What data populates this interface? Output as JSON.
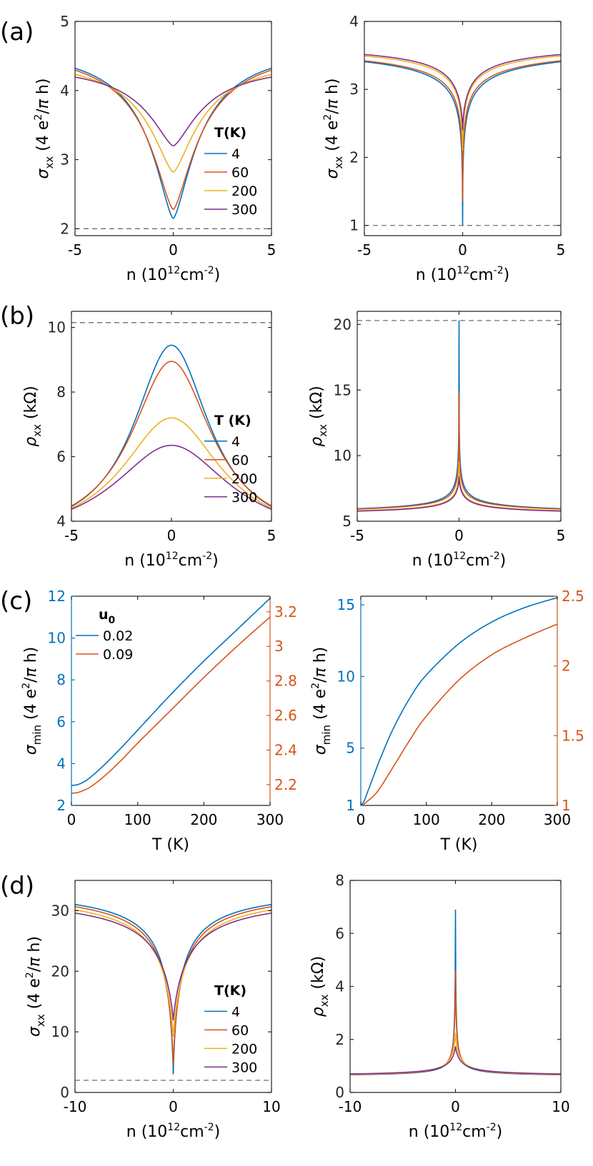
{
  "colors": {
    "c4": "#0072BD",
    "c60": "#D95319",
    "c200": "#EDB120",
    "c300": "#7E2F8E",
    "axis": "#262626",
    "dash": "#6e6e6e"
  },
  "panel_labels": [
    "(a)",
    "(b)",
    "(c)",
    "(d)"
  ],
  "chart_data": [
    {
      "id": "a-left",
      "type": "line",
      "panel_label": "(a)",
      "xlabel": "n (10¹²cm⁻²)",
      "ylabel": "σxx (4 e²/π h)",
      "xlim": [
        -5,
        5
      ],
      "ylim": [
        1.9,
        5
      ],
      "xticks": [
        -5,
        0,
        5
      ],
      "xtick_labels": [
        "-5",
        "0",
        "5"
      ],
      "yticks": [
        2,
        3,
        4,
        5
      ],
      "ytick_labels": [
        "2",
        "3",
        "4",
        "5"
      ],
      "hline": 2,
      "legend": {
        "title": "T(K)",
        "entries": [
          "4",
          "60",
          "200",
          "300"
        ],
        "position": "center-right"
      },
      "series": [
        {
          "name": "4",
          "color": "#0072BD",
          "model": {
            "kind": "cond",
            "min": 2.15,
            "max": 4.68,
            "width": 1.5,
            "shape": 1.5
          }
        },
        {
          "name": "60",
          "color": "#D95319",
          "model": {
            "kind": "cond",
            "min": 2.28,
            "max": 4.66,
            "width": 1.6,
            "shape": 1.5
          }
        },
        {
          "name": "200",
          "color": "#EDB120",
          "model": {
            "kind": "cond",
            "min": 2.82,
            "max": 4.5,
            "width": 1.65,
            "shape": 1.5
          }
        },
        {
          "name": "300",
          "color": "#7E2F8E",
          "model": {
            "kind": "cond",
            "min": 3.2,
            "max": 4.4,
            "width": 1.75,
            "shape": 1.5
          }
        }
      ]
    },
    {
      "id": "a-right",
      "type": "line",
      "xlabel": "n (10¹²cm⁻²)",
      "ylabel": "σxx (4 e²/π h)",
      "xlim": [
        -5,
        5
      ],
      "ylim": [
        0.85,
        4
      ],
      "xticks": [
        -5,
        0,
        5
      ],
      "xtick_labels": [
        "-5",
        "0",
        "5"
      ],
      "yticks": [
        1,
        2,
        3,
        4
      ],
      "ytick_labels": [
        "1",
        "2",
        "3",
        "4"
      ],
      "hline": 1,
      "series": [
        {
          "name": "4",
          "color": "#0072BD",
          "model": {
            "kind": "cond",
            "min": 1.0,
            "max": 3.78,
            "width": 0.12,
            "shape": 0.5
          }
        },
        {
          "name": "60",
          "color": "#D95319",
          "model": {
            "kind": "cond",
            "min": 1.35,
            "max": 3.78,
            "width": 0.15,
            "shape": 0.5
          }
        },
        {
          "name": "200",
          "color": "#EDB120",
          "model": {
            "kind": "cond",
            "min": 2.1,
            "max": 3.75,
            "width": 0.3,
            "shape": 0.6
          }
        },
        {
          "name": "300",
          "color": "#7E2F8E",
          "model": {
            "kind": "cond",
            "min": 2.4,
            "max": 3.72,
            "width": 0.45,
            "shape": 0.7
          }
        }
      ]
    },
    {
      "id": "b-left",
      "type": "line",
      "panel_label": "(b)",
      "xlabel": "n (10¹²cm⁻²)",
      "ylabel": "ρxx (kΩ)",
      "xlim": [
        -5,
        5
      ],
      "ylim": [
        4,
        10.5
      ],
      "xticks": [
        -5,
        0,
        5
      ],
      "xtick_labels": [
        "-5",
        "0",
        "5"
      ],
      "yticks": [
        4,
        6,
        8,
        10
      ],
      "ytick_labels": [
        "4",
        "6",
        "8",
        "10"
      ],
      "hline": 10.15,
      "legend": {
        "title": "T (K)",
        "entries": [
          "4",
          "60",
          "200",
          "300"
        ],
        "position": "center-right"
      },
      "series": [
        {
          "name": "4",
          "color": "#0072BD",
          "model": {
            "kind": "peak",
            "base": 3.4,
            "height": 6.05,
            "width": 2.3
          }
        },
        {
          "name": "60",
          "color": "#D95319",
          "model": {
            "kind": "peak",
            "base": 3.4,
            "height": 5.55,
            "width": 2.45
          }
        },
        {
          "name": "200",
          "color": "#EDB120",
          "model": {
            "kind": "peak",
            "base": 3.4,
            "height": 3.8,
            "width": 3.0
          }
        },
        {
          "name": "300",
          "color": "#7E2F8E",
          "model": {
            "kind": "peak",
            "base": 3.4,
            "height": 2.95,
            "width": 3.5
          }
        }
      ]
    },
    {
      "id": "b-right",
      "type": "line",
      "xlabel": "n (10¹²cm⁻²)",
      "ylabel": "ρxx (kΩ)",
      "xlim": [
        -5,
        5
      ],
      "ylim": [
        5,
        21
      ],
      "xticks": [
        -5,
        0,
        5
      ],
      "xtick_labels": [
        "-5",
        "0",
        "5"
      ],
      "yticks": [
        5,
        10,
        15,
        20
      ],
      "ytick_labels": [
        "5",
        "10",
        "15",
        "20"
      ],
      "hline": 20.3,
      "series": [
        {
          "name": "4",
          "color": "#0072BD",
          "model": {
            "kind": "recip",
            "min": 1.0,
            "max": 3.78,
            "width": 0.12,
            "shape": 0.5,
            "scale": 20.3
          }
        },
        {
          "name": "60",
          "color": "#D95319",
          "model": {
            "kind": "recip",
            "min": 1.37,
            "max": 3.78,
            "width": 0.15,
            "shape": 0.5,
            "scale": 20.3
          }
        },
        {
          "name": "200",
          "color": "#EDB120",
          "model": {
            "kind": "recip",
            "min": 2.12,
            "max": 3.75,
            "width": 0.3,
            "shape": 0.6,
            "scale": 20.3
          }
        },
        {
          "name": "300",
          "color": "#7E2F8E",
          "model": {
            "kind": "recip",
            "min": 2.42,
            "max": 3.72,
            "width": 0.45,
            "shape": 0.7,
            "scale": 20.3
          }
        }
      ]
    },
    {
      "id": "c-left",
      "type": "line",
      "panel_label": "(c)",
      "xlabel": "T (K)",
      "ylabel": "σmin (4 e²/π h)",
      "xlim": [
        0,
        300
      ],
      "ylim": [
        2,
        12
      ],
      "ylim_right": [
        2.08,
        3.29
      ],
      "xticks": [
        0,
        100,
        200,
        300
      ],
      "xtick_labels": [
        "0",
        "100",
        "200",
        "300"
      ],
      "yticks": [
        2,
        4,
        6,
        8,
        10,
        12
      ],
      "ytick_labels": [
        "2",
        "4",
        "6",
        "8",
        "10",
        "12"
      ],
      "yticks_right": [
        2.2,
        2.4,
        2.6,
        2.8,
        3.0,
        3.2
      ],
      "ytick_labels_right": [
        "2.2",
        "2.4",
        "2.6",
        "2.8",
        "3",
        "3.2"
      ],
      "left_axis_color": "#0072BD",
      "right_axis_color": "#D95319",
      "legend": {
        "title": "u0",
        "entries": [
          "0.02",
          "0.09"
        ],
        "position": "top-left"
      },
      "series": [
        {
          "name": "0.02",
          "color": "#0072BD",
          "axis": "left",
          "x": [
            0,
            10,
            20,
            30,
            50,
            75,
            100,
            150,
            200,
            250,
            300
          ],
          "y": [
            2.95,
            3.0,
            3.15,
            3.38,
            3.95,
            4.75,
            5.6,
            7.3,
            8.9,
            10.4,
            11.9
          ]
        },
        {
          "name": "0.09",
          "color": "#D95319",
          "axis": "right",
          "x": [
            0,
            10,
            20,
            30,
            50,
            75,
            100,
            150,
            200,
            250,
            300
          ],
          "y": [
            2.15,
            2.155,
            2.17,
            2.19,
            2.25,
            2.34,
            2.44,
            2.63,
            2.82,
            3.0,
            3.17
          ]
        }
      ]
    },
    {
      "id": "c-right",
      "type": "line",
      "xlabel": "T (K)",
      "ylabel": "σmin (4 e²/π h)",
      "xlim": [
        0,
        300
      ],
      "ylim": [
        1,
        15.6
      ],
      "ylim_right": [
        1,
        2.5
      ],
      "xticks": [
        0,
        100,
        200,
        300
      ],
      "xtick_labels": [
        "0",
        "100",
        "200",
        "300"
      ],
      "yticks": [
        1,
        5,
        10,
        15
      ],
      "ytick_labels": [
        "1",
        "5",
        "10",
        "15"
      ],
      "yticks_right": [
        1,
        1.5,
        2,
        2.5
      ],
      "ytick_labels_right": [
        "1",
        "1.5",
        "2",
        "2.5"
      ],
      "left_axis_color": "#0072BD",
      "right_axis_color": "#D95319",
      "series": [
        {
          "name": "0.02",
          "color": "#0072BD",
          "axis": "left",
          "x": [
            0,
            5,
            10,
            20,
            30,
            50,
            75,
            100,
            150,
            200,
            250,
            300
          ],
          "y": [
            1.0,
            1.3,
            1.9,
            3.1,
            4.3,
            6.4,
            8.5,
            10.1,
            12.3,
            13.8,
            14.8,
            15.5
          ]
        },
        {
          "name": "0.09",
          "color": "#D95319",
          "axis": "right",
          "x": [
            0,
            5,
            10,
            20,
            30,
            50,
            75,
            100,
            150,
            200,
            250,
            300
          ],
          "y": [
            1.0,
            1.01,
            1.03,
            1.07,
            1.13,
            1.28,
            1.47,
            1.64,
            1.9,
            2.08,
            2.2,
            2.3
          ]
        }
      ]
    },
    {
      "id": "d-left",
      "type": "line",
      "panel_label": "(d)",
      "xlabel": "n (10¹²cm⁻²)",
      "ylabel": "σxx (4 e²/π h)",
      "xlim": [
        -10,
        10
      ],
      "ylim": [
        0,
        35
      ],
      "xticks": [
        -10,
        0,
        10
      ],
      "xtick_labels": [
        "-10",
        "0",
        "10"
      ],
      "yticks": [
        0,
        10,
        20,
        30
      ],
      "ytick_labels": [
        "0",
        "10",
        "20",
        "30"
      ],
      "hline": 2,
      "legend": {
        "title": "T(K)",
        "entries": [
          "4",
          "60",
          "200",
          "300"
        ],
        "position": "center-right"
      },
      "series": [
        {
          "name": "4",
          "color": "#0072BD",
          "model": {
            "kind": "cond",
            "min": 3.0,
            "max": 34.3,
            "width": 0.8,
            "shape": 0.85
          }
        },
        {
          "name": "60",
          "color": "#D95319",
          "model": {
            "kind": "cond",
            "min": 4.5,
            "max": 34.2,
            "width": 0.95,
            "shape": 0.85
          }
        },
        {
          "name": "200",
          "color": "#EDB120",
          "model": {
            "kind": "cond",
            "min": 9.2,
            "max": 33.7,
            "width": 1.4,
            "shape": 0.9
          }
        },
        {
          "name": "300",
          "color": "#7E2F8E",
          "model": {
            "kind": "cond",
            "min": 11.9,
            "max": 33.0,
            "width": 1.6,
            "shape": 0.9
          }
        }
      ]
    },
    {
      "id": "d-right",
      "type": "line",
      "xlabel": "n (10¹²cm⁻²)",
      "ylabel": "ρxx (kΩ)",
      "xlim": [
        -10,
        10
      ],
      "ylim": [
        0,
        8
      ],
      "xticks": [
        -10,
        0,
        10
      ],
      "xtick_labels": [
        "-10",
        "0",
        "10"
      ],
      "yticks": [
        0,
        2,
        4,
        6,
        8
      ],
      "ytick_labels": [
        "0",
        "2",
        "4",
        "6",
        "8"
      ],
      "series": [
        {
          "name": "4",
          "color": "#0072BD",
          "model": {
            "kind": "recip",
            "min": 3.0,
            "max": 34.3,
            "width": 0.8,
            "shape": 0.85,
            "scale": 20.7
          }
        },
        {
          "name": "60",
          "color": "#D95319",
          "model": {
            "kind": "recip",
            "min": 4.5,
            "max": 34.2,
            "width": 0.95,
            "shape": 0.85,
            "scale": 20.7
          }
        },
        {
          "name": "200",
          "color": "#EDB120",
          "model": {
            "kind": "recip",
            "min": 9.2,
            "max": 33.7,
            "width": 1.4,
            "shape": 0.9,
            "scale": 20.7
          }
        },
        {
          "name": "300",
          "color": "#7E2F8E",
          "model": {
            "kind": "recip",
            "min": 11.9,
            "max": 33.0,
            "width": 1.6,
            "shape": 0.9,
            "scale": 20.7
          }
        }
      ]
    }
  ]
}
